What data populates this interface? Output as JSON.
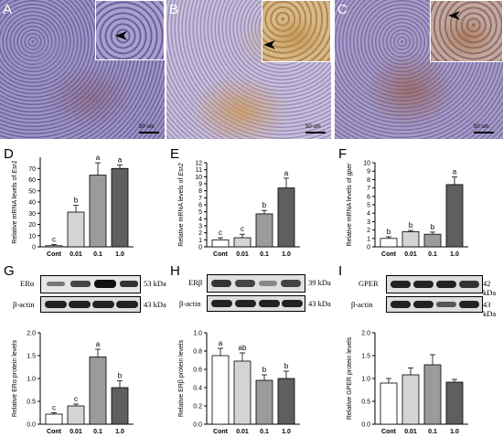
{
  "panels": {
    "A": {
      "letter": "A",
      "scale": "50 um"
    },
    "B": {
      "letter": "B",
      "scale": "50 um"
    },
    "C": {
      "letter": "C",
      "scale": "50 um"
    },
    "D": {
      "letter": "D"
    },
    "E": {
      "letter": "E"
    },
    "F": {
      "letter": "F"
    },
    "G": {
      "letter": "G",
      "blot_rows": [
        {
          "label": "ERα",
          "kda": "53 kDa"
        },
        {
          "label": "β-actin",
          "kda": "43 kDa"
        }
      ]
    },
    "H": {
      "letter": "H",
      "blot_rows": [
        {
          "label": "ERβ",
          "kda": "39 kDa"
        },
        {
          "label": "β-actin",
          "kda": "43 kDa"
        }
      ]
    },
    "I": {
      "letter": "I",
      "blot_rows": [
        {
          "label": "GPER",
          "kda": "42 kDa"
        },
        {
          "label": "β-actin",
          "kda": "43 kDa"
        }
      ]
    }
  },
  "colors": {
    "bar_cont": "#ffffff",
    "bar_001": "#d4d4d4",
    "bar_01": "#9b9b9b",
    "bar_10": "#5f5f5f",
    "tissue_purple": "#7a6fa6",
    "tissue_brown": "#b8894e"
  },
  "chart_data": [
    {
      "id": "D",
      "type": "bar",
      "categories": [
        "Cont",
        "0.01",
        "0.1",
        "1.0"
      ],
      "values": [
        1,
        31,
        64,
        70
      ],
      "errors": [
        1,
        6,
        11,
        3
      ],
      "letters": [
        "c",
        "b",
        "a",
        "a"
      ],
      "ylabel_prefix": "Relative mRNA levels of ",
      "ylabel_gene": "Esr1",
      "ylim": [
        0,
        80
      ],
      "yticks": [
        0,
        10,
        20,
        30,
        40,
        50,
        60,
        70
      ]
    },
    {
      "id": "E",
      "type": "bar",
      "categories": [
        "Cont",
        "0.01",
        "0.1",
        "1.0"
      ],
      "values": [
        1,
        1.3,
        4.7,
        8.4
      ],
      "errors": [
        0.3,
        0.5,
        0.5,
        1.4
      ],
      "letters": [
        "c",
        "c",
        "b",
        "a"
      ],
      "ylabel_prefix": "Relative mRNA levels of ",
      "ylabel_gene": "Esr2",
      "ylim": [
        0,
        12
      ],
      "yticks": [
        0,
        1,
        2,
        3,
        4,
        5,
        6,
        7,
        8,
        9,
        10,
        11,
        12
      ]
    },
    {
      "id": "F",
      "type": "bar",
      "categories": [
        "Cont",
        "0.01",
        "0.1",
        "1.0"
      ],
      "values": [
        1,
        1.8,
        1.5,
        7.4
      ],
      "errors": [
        0.2,
        0.15,
        0.25,
        0.9
      ],
      "letters": [
        "b",
        "b",
        "b",
        "a"
      ],
      "ylabel_prefix": "Relative mRNA levels of ",
      "ylabel_gene": "gper",
      "ylim": [
        0,
        10
      ],
      "yticks": [
        0,
        1,
        2,
        3,
        4,
        5,
        6,
        7,
        8,
        9,
        10
      ]
    },
    {
      "id": "G",
      "type": "bar",
      "categories": [
        "Cont",
        "0.01",
        "0.1",
        "1.0"
      ],
      "values": [
        0.22,
        0.4,
        1.47,
        0.8
      ],
      "errors": [
        0.03,
        0.04,
        0.17,
        0.15
      ],
      "letters": [
        "c",
        "c",
        "a",
        "b"
      ],
      "ylabel_prefix": "Relative ERα protein levels",
      "ylabel_gene": "",
      "ylim": [
        0,
        2.0
      ],
      "yticks": [
        0,
        0.5,
        1.0,
        1.5,
        2.0
      ],
      "ytick_labels": [
        "0.0",
        "0.5",
        "1.0",
        "1.5",
        "2.0"
      ]
    },
    {
      "id": "H",
      "type": "bar",
      "categories": [
        "Cont",
        "0.01",
        "0.1",
        "1.0"
      ],
      "values": [
        0.75,
        0.69,
        0.48,
        0.5
      ],
      "errors": [
        0.08,
        0.09,
        0.06,
        0.08
      ],
      "letters": [
        "a",
        "ab",
        "b",
        "b"
      ],
      "ylabel_prefix": "Relative ERβ protein levels",
      "ylabel_gene": "",
      "ylim": [
        0,
        1.0
      ],
      "yticks": [
        0,
        0.2,
        0.4,
        0.6,
        0.8,
        1.0
      ],
      "ytick_labels": [
        "0.0",
        "0.2",
        "0.4",
        "0.6",
        "0.8",
        "1.0"
      ]
    },
    {
      "id": "I",
      "type": "bar",
      "categories": [
        "Cont",
        "0.01",
        "0.1",
        "1.0"
      ],
      "values": [
        0.9,
        1.08,
        1.3,
        0.92
      ],
      "errors": [
        0.1,
        0.15,
        0.22,
        0.06
      ],
      "letters": [
        "",
        "",
        "",
        ""
      ],
      "ylabel_prefix": "Relative GPER protein levels",
      "ylabel_gene": "",
      "ylim": [
        0,
        2.0
      ],
      "yticks": [
        0,
        0.5,
        1.0,
        1.5,
        2.0
      ],
      "ytick_labels": [
        "0.0",
        "0.5",
        "1.0",
        "1.5",
        "2.0"
      ]
    }
  ]
}
